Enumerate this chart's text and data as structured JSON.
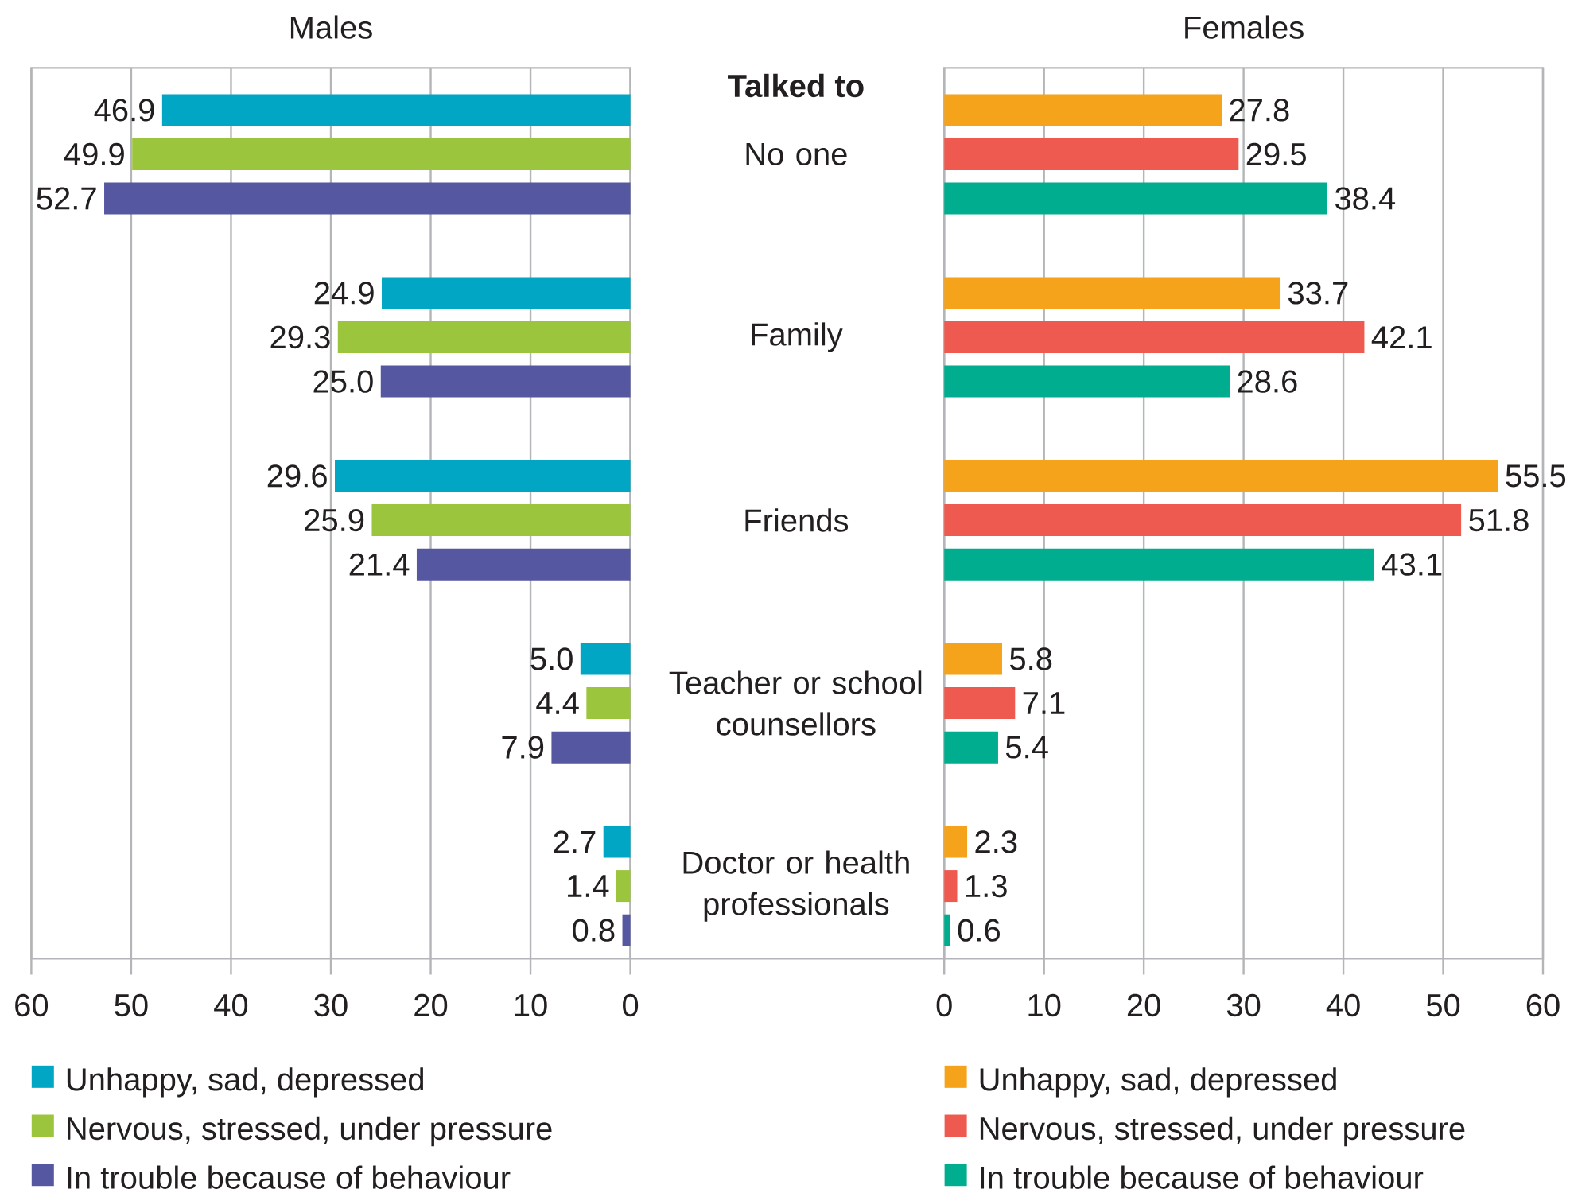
{
  "chart_data": [
    {
      "type": "bar",
      "orientation": "horizontal",
      "title": "Males",
      "ylabel": "Talked to",
      "categories": [
        "No one",
        "Family",
        "Friends",
        "Teacher or school counsellors",
        "Doctor or health professionals"
      ],
      "series": [
        {
          "name": "Unhappy, sad, depressed",
          "color": "#00a6c4",
          "values": [
            46.9,
            24.9,
            29.6,
            5.0,
            2.7
          ],
          "value_labels": [
            "46.9",
            "24.9",
            "29.6",
            "5.0",
            "2.7"
          ]
        },
        {
          "name": "Nervous, stressed, under pressure",
          "color": "#9bc53d",
          "values": [
            49.9,
            29.3,
            25.9,
            4.4,
            1.4
          ],
          "value_labels": [
            "49.9",
            "29.3",
            "25.9",
            "4.4",
            "1.4"
          ]
        },
        {
          "name": "In trouble because of behaviour",
          "color": "#5557a0",
          "values": [
            52.7,
            25.0,
            21.4,
            7.9,
            0.8
          ],
          "value_labels": [
            "52.7",
            "25.0",
            "21.4",
            "7.9",
            "0.8"
          ]
        }
      ],
      "xlim": [
        60,
        0
      ],
      "xticks": [
        60,
        50,
        40,
        30,
        20,
        10,
        0
      ],
      "grid": "x",
      "legend": "bottom"
    },
    {
      "type": "bar",
      "orientation": "horizontal",
      "title": "Females",
      "categories": [
        null,
        null,
        null,
        null,
        null
      ],
      "series": [
        {
          "name": "Unhappy, sad, depressed",
          "color": "#f5a31b",
          "values": [
            27.8,
            33.7,
            55.5,
            5.8,
            2.3
          ],
          "value_labels": [
            "27.8",
            "33.7",
            "55.5",
            "5.8",
            "2.3"
          ]
        },
        {
          "name": "Nervous, stressed, under pressure",
          "color": "#ee5a4f",
          "values": [
            29.5,
            42.1,
            51.8,
            7.1,
            1.3
          ],
          "value_labels": [
            "29.5",
            "42.1",
            "51.8",
            "7.1",
            "1.3"
          ]
        },
        {
          "name": "In trouble because of behaviour",
          "color": "#00ad8e",
          "values": [
            38.4,
            28.6,
            43.1,
            5.4,
            0.6
          ],
          "value_labels": [
            "38.4",
            "28.6",
            "43.1",
            "5.4",
            "0.6"
          ]
        }
      ],
      "xlim": [
        0,
        60
      ],
      "xticks": [
        0,
        10,
        20,
        30,
        40,
        50,
        60
      ],
      "grid": "x",
      "legend": "bottom"
    }
  ]
}
